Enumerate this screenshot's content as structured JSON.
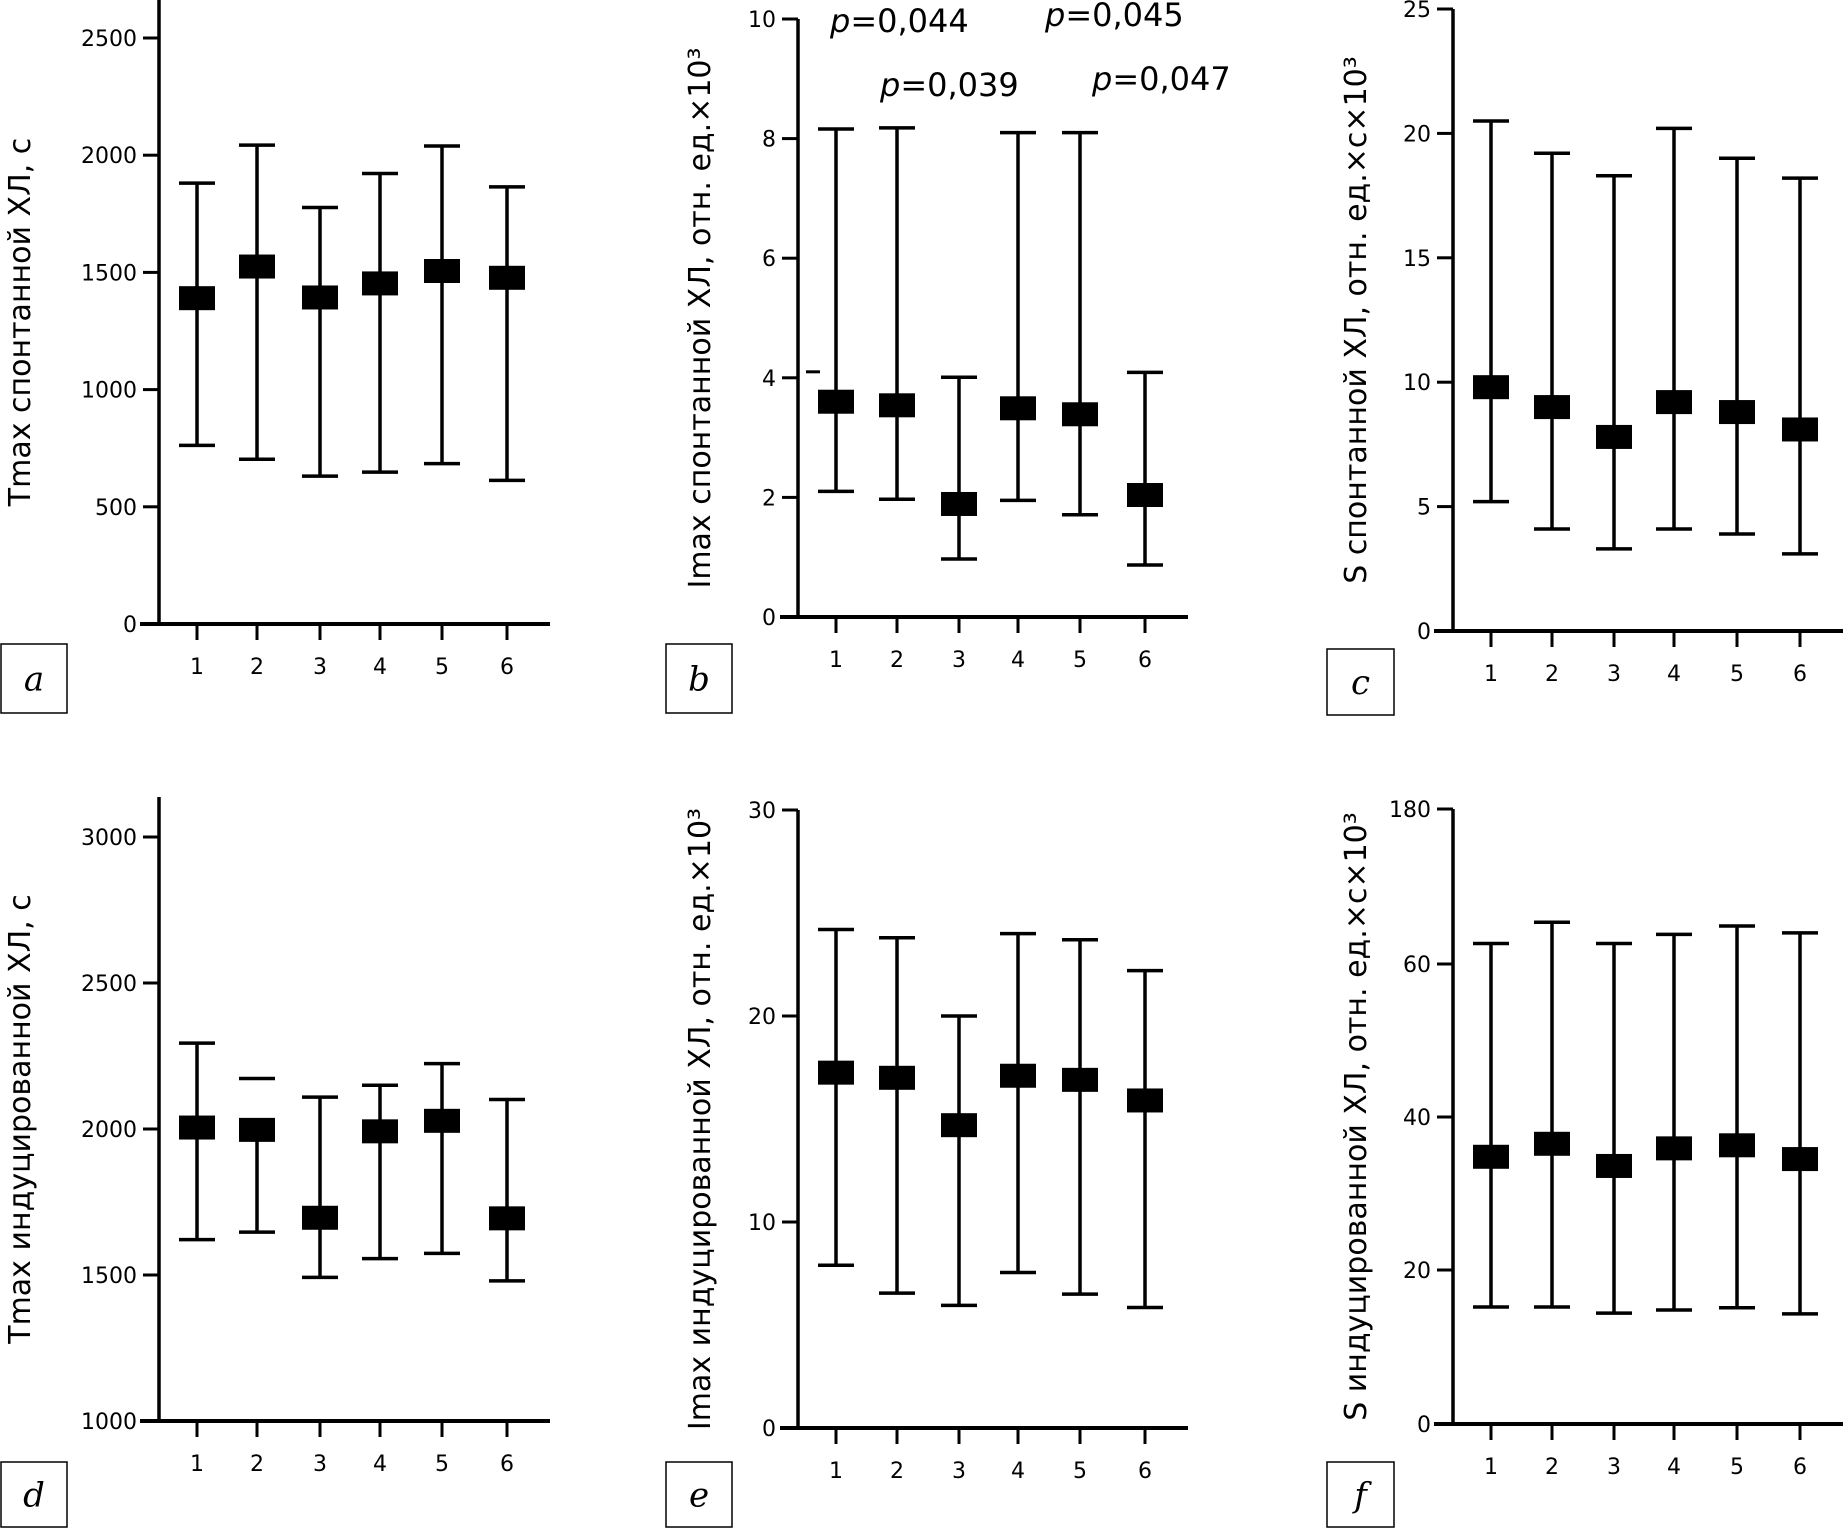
{
  "figure": {
    "panel_labels": [
      "a",
      "b",
      "c",
      "d",
      "e",
      "f"
    ]
  },
  "chart_data": [
    {
      "id": "a",
      "type": "errorbar",
      "title": "",
      "xlabel": "",
      "ylabel": "Tmax спонтанной ХЛ, с",
      "categories": [
        "1",
        "2",
        "3",
        "4",
        "5",
        "6"
      ],
      "ylim": [
        0,
        2650
      ],
      "yticks": [
        0,
        500,
        1000,
        1500,
        2000,
        2500
      ],
      "ytick_labels": [
        "0",
        "500",
        "1000",
        "1500",
        "2000",
        "2500"
      ],
      "grid": false,
      "series": [
        {
          "name": "median",
          "values": [
            1390,
            1525,
            1393,
            1453,
            1506,
            1477
          ]
        },
        {
          "name": "upper",
          "values": [
            1881,
            2043,
            1777,
            1922,
            2039,
            1865
          ]
        },
        {
          "name": "lower",
          "values": [
            762,
            703,
            631,
            648,
            684,
            613
          ]
        }
      ],
      "annotations": []
    },
    {
      "id": "b",
      "type": "errorbar",
      "title": "",
      "xlabel": "",
      "ylabel": "Imax спонтанной ХЛ, отн. ед.×10³",
      "categories": [
        "1",
        "2",
        "3",
        "4",
        "5",
        "6"
      ],
      "ylim": [
        0,
        10
      ],
      "yticks": [
        0,
        2,
        4,
        6,
        8,
        10
      ],
      "ytick_labels": [
        "0",
        "2",
        "4",
        "6",
        "8",
        "10"
      ],
      "grid": false,
      "series": [
        {
          "name": "median",
          "values": [
            3.6,
            3.54,
            1.89,
            3.49,
            3.39,
            2.04
          ]
        },
        {
          "name": "upper",
          "values": [
            8.16,
            8.18,
            4.01,
            8.1,
            8.1,
            4.09
          ]
        },
        {
          "name": "lower",
          "values": [
            2.1,
            1.97,
            0.97,
            1.95,
            1.71,
            0.87
          ]
        }
      ],
      "stray_marks": [
        4.1
      ],
      "annotations": [
        {
          "prefix": "p",
          "text": "=0,044",
          "near_category": "1",
          "row": 1
        },
        {
          "prefix": "p",
          "text": "=0,039",
          "near_category": "2",
          "row": 2
        },
        {
          "prefix": "p",
          "text": "=0,045",
          "near_category": "5",
          "row": 1
        },
        {
          "prefix": "p",
          "text": "=0,047",
          "near_category": "5",
          "row": 2
        }
      ]
    },
    {
      "id": "c",
      "type": "errorbar",
      "title": "",
      "xlabel": "",
      "ylabel": "S спонтанной ХЛ, отн. ед.×с×10³",
      "categories": [
        "1",
        "2",
        "3",
        "4",
        "5",
        "6"
      ],
      "ylim": [
        0,
        25
      ],
      "yticks": [
        0,
        5,
        10,
        15,
        20,
        25
      ],
      "ytick_labels": [
        "0",
        "5",
        "10",
        "15",
        "20",
        "25"
      ],
      "grid": false,
      "series": [
        {
          "name": "median",
          "values": [
            9.8,
            9.0,
            7.8,
            9.2,
            8.8,
            8.1
          ]
        },
        {
          "name": "upper",
          "values": [
            20.5,
            19.2,
            18.3,
            20.2,
            19.0,
            18.2
          ]
        },
        {
          "name": "lower",
          "values": [
            5.2,
            4.1,
            3.3,
            4.1,
            3.9,
            3.1
          ]
        }
      ],
      "annotations": []
    },
    {
      "id": "d",
      "type": "errorbar",
      "title": "",
      "xlabel": "",
      "ylabel": "Tmax индуцированной ХЛ, с",
      "categories": [
        "1",
        "2",
        "3",
        "4",
        "5",
        "6"
      ],
      "ylim": [
        1000,
        3130
      ],
      "yticks": [
        1000,
        1500,
        2000,
        2500,
        3000
      ],
      "ytick_labels": [
        "1000",
        "1500",
        "2000",
        "2500",
        "3000"
      ],
      "grid": false,
      "series": [
        {
          "name": "median",
          "values": [
            2005,
            1997,
            1696,
            1992,
            2028,
            1694
          ]
        },
        {
          "name": "upper",
          "values": [
            2294,
            2173,
            2109,
            2150,
            2224,
            2101
          ]
        },
        {
          "name": "lower",
          "values": [
            1621,
            1647,
            1492,
            1556,
            1574,
            1480
          ]
        }
      ],
      "annotations": []
    },
    {
      "id": "e",
      "type": "errorbar",
      "title": "",
      "xlabel": "",
      "ylabel": "Imax индуцированной ХЛ, отн. ед.×10³",
      "categories": [
        "1",
        "2",
        "3",
        "4",
        "5",
        "6"
      ],
      "ylim": [
        0,
        30
      ],
      "yticks": [
        0,
        10,
        20,
        30
      ],
      "ytick_labels": [
        "0",
        "10",
        "20",
        "30"
      ],
      "grid": false,
      "series": [
        {
          "name": "median",
          "values": [
            17.25,
            17.0,
            14.7,
            17.1,
            16.9,
            15.9
          ]
        },
        {
          "name": "upper",
          "values": [
            24.2,
            23.8,
            20.0,
            24.0,
            23.7,
            22.2
          ]
        },
        {
          "name": "lower",
          "values": [
            7.9,
            6.55,
            5.95,
            7.55,
            6.5,
            5.85
          ]
        }
      ],
      "annotations": []
    },
    {
      "id": "f",
      "type": "errorbar",
      "title": "",
      "xlabel": "",
      "ylabel": "S индуцированной ХЛ, отн. ед.×с×10³",
      "categories": [
        "1",
        "2",
        "3",
        "4",
        "5",
        "6"
      ],
      "ylim": [
        0,
        180
      ],
      "axis_break": [
        70,
        180
      ],
      "yticks": [
        0,
        20,
        40,
        60,
        180
      ],
      "ytick_labels": [
        "0",
        "20",
        "40",
        "60",
        "180"
      ],
      "grid": false,
      "series": [
        {
          "name": "median",
          "values": [
            34.8,
            36.5,
            33.6,
            35.9,
            36.3,
            34.5
          ]
        },
        {
          "name": "upper",
          "values": [
            62.7,
            65.5,
            62.7,
            63.9,
            65.0,
            64.1
          ]
        },
        {
          "name": "lower",
          "values": [
            15.2,
            15.2,
            14.4,
            14.8,
            15.1,
            14.3
          ]
        }
      ],
      "annotations": []
    }
  ]
}
